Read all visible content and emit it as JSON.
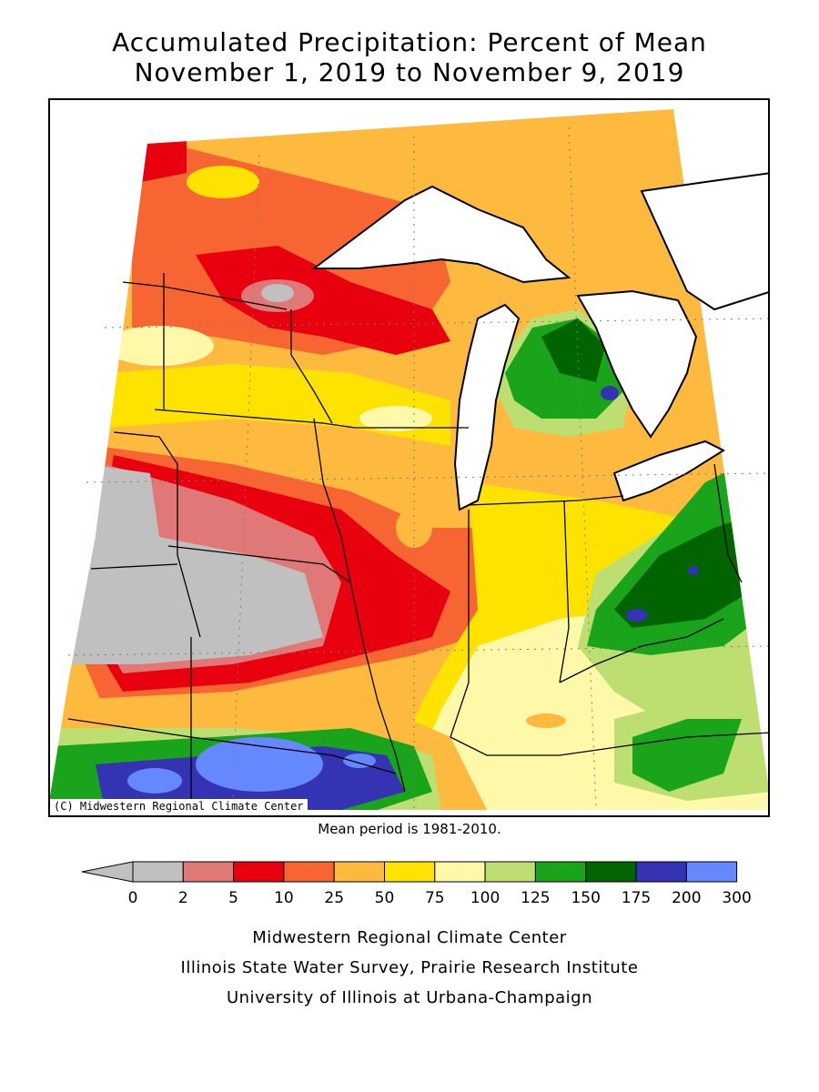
{
  "title_line1": "Accumulated Precipitation: Percent of Mean",
  "title_line2": "November 1, 2019 to November 9, 2019",
  "copyright": "(C) Midwestern Regional Climate Center",
  "mean_note": "Mean period is 1981-2010.",
  "legend": {
    "labels": [
      "0",
      "2",
      "5",
      "10",
      "25",
      "50",
      "75",
      "100",
      "125",
      "150",
      "175",
      "200",
      "300"
    ],
    "colors": [
      "#c0c0c0",
      "#e07878",
      "#e8000e",
      "#f76532",
      "#fdba3e",
      "#fee300",
      "#fef9a9",
      "#bdde71",
      "#19a41b",
      "#006400",
      "#3333b3",
      "#6688ff"
    ]
  },
  "credits": {
    "line1": "Midwestern Regional Climate Center",
    "line2": "Illinois State Water Survey, Prairie Research Institute",
    "line3": "University of Illinois at Urbana-Champaign"
  }
}
